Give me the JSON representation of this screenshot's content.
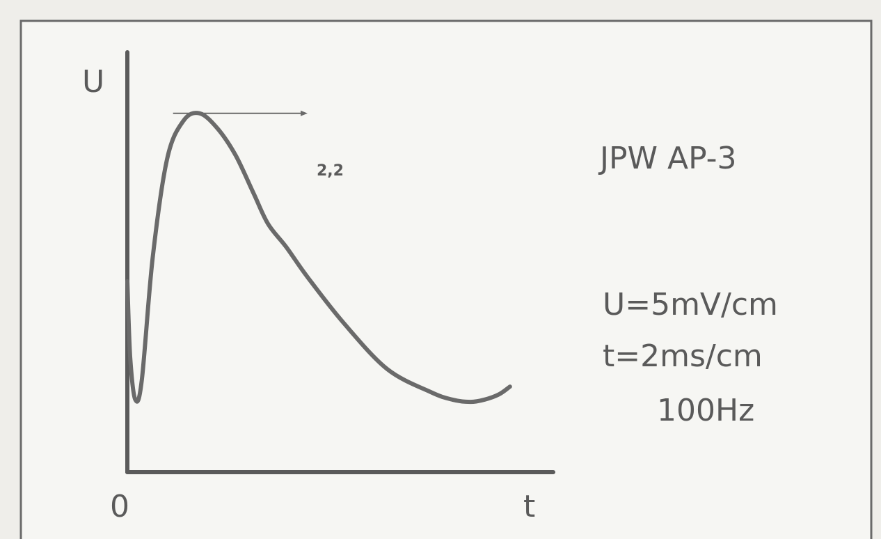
{
  "chart_data": {
    "type": "line",
    "title": "JPW AP-3",
    "xlabel": "t",
    "ylabel": "U",
    "origin_label": "0",
    "annotations": {
      "peak_label": "2,2",
      "settings": [
        "U=5mV/cm",
        "t=2ms/cm",
        "100Hz"
      ]
    },
    "xlim": [
      0,
      11.8
    ],
    "ylim": [
      -2.5,
      3.0
    ],
    "series": [
      {
        "x": [
          0,
          0.08,
          0.22,
          0.4,
          0.7,
          1.1,
          1.55,
          2.0,
          2.5,
          3.0,
          3.5,
          3.9,
          4.4,
          5.0,
          6.0,
          7.2,
          8.4,
          9.0,
          9.5,
          9.9,
          10.3,
          10.6
        ],
        "y": [
          0.0,
          -1.0,
          -1.55,
          -1.3,
          0.3,
          1.6,
          2.1,
          2.2,
          2.0,
          1.65,
          1.15,
          0.75,
          0.45,
          0.05,
          -0.55,
          -1.15,
          -1.45,
          -1.55,
          -1.58,
          -1.55,
          -1.48,
          -1.38
        ]
      }
    ]
  }
}
